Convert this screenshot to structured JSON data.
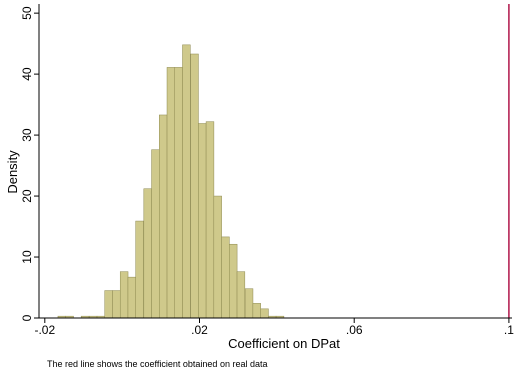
{
  "chart_data": {
    "type": "bar",
    "subtype": "histogram",
    "xlabel": "Coefficient on DPat",
    "ylabel": "Density",
    "xlim": [
      -0.0215,
      0.1008
    ],
    "ylim": [
      0,
      51.5
    ],
    "x_ticks": [
      {
        "value": -0.02,
        "label": "-.02"
      },
      {
        "value": 0.02,
        "label": ".02"
      },
      {
        "value": 0.06,
        "label": ".06"
      },
      {
        "value": 0.1,
        "label": ".1"
      }
    ],
    "y_ticks": [
      {
        "value": 0,
        "label": "0"
      },
      {
        "value": 10,
        "label": "10"
      },
      {
        "value": 20,
        "label": "20"
      },
      {
        "value": 30,
        "label": "30"
      },
      {
        "value": 40,
        "label": "40"
      },
      {
        "value": 50,
        "label": "50"
      }
    ],
    "bin_width": 0.00202,
    "bins": [
      {
        "x0": -0.0166,
        "density": 0.3
      },
      {
        "x0": -0.0146,
        "density": 0.3
      },
      {
        "x0": -0.0126,
        "density": 0
      },
      {
        "x0": -0.0106,
        "density": 0.3
      },
      {
        "x0": -0.0085,
        "density": 0.3
      },
      {
        "x0": -0.0065,
        "density": 0.3
      },
      {
        "x0": -0.0045,
        "density": 4.5
      },
      {
        "x0": -0.0025,
        "density": 4.5
      },
      {
        "x0": -0.0005,
        "density": 7.6
      },
      {
        "x0": 0.0015,
        "density": 6.7
      },
      {
        "x0": 0.0035,
        "density": 15.9
      },
      {
        "x0": 0.0056,
        "density": 21.2
      },
      {
        "x0": 0.0076,
        "density": 27.6
      },
      {
        "x0": 0.0096,
        "density": 33.3
      },
      {
        "x0": 0.0116,
        "density": 41.1
      },
      {
        "x0": 0.0136,
        "density": 41.1
      },
      {
        "x0": 0.0156,
        "density": 44.8
      },
      {
        "x0": 0.0177,
        "density": 43.3
      },
      {
        "x0": 0.0197,
        "density": 31.9
      },
      {
        "x0": 0.0217,
        "density": 32.2
      },
      {
        "x0": 0.0237,
        "density": 20.0
      },
      {
        "x0": 0.0257,
        "density": 13.3
      },
      {
        "x0": 0.0277,
        "density": 12.1
      },
      {
        "x0": 0.0297,
        "density": 7.6
      },
      {
        "x0": 0.0318,
        "density": 4.8
      },
      {
        "x0": 0.0338,
        "density": 2.4
      },
      {
        "x0": 0.0358,
        "density": 1.5
      },
      {
        "x0": 0.0378,
        "density": 0.3
      },
      {
        "x0": 0.0398,
        "density": 0.3
      }
    ],
    "reference_line": {
      "x": 0.1,
      "color": "#b0154a"
    },
    "note": "The red line shows the coefficient obtained on real data",
    "colors": {
      "bar_fill": "#cfc98b",
      "bar_edge": "#8c884f",
      "axis": "#000000"
    },
    "grid": false
  }
}
